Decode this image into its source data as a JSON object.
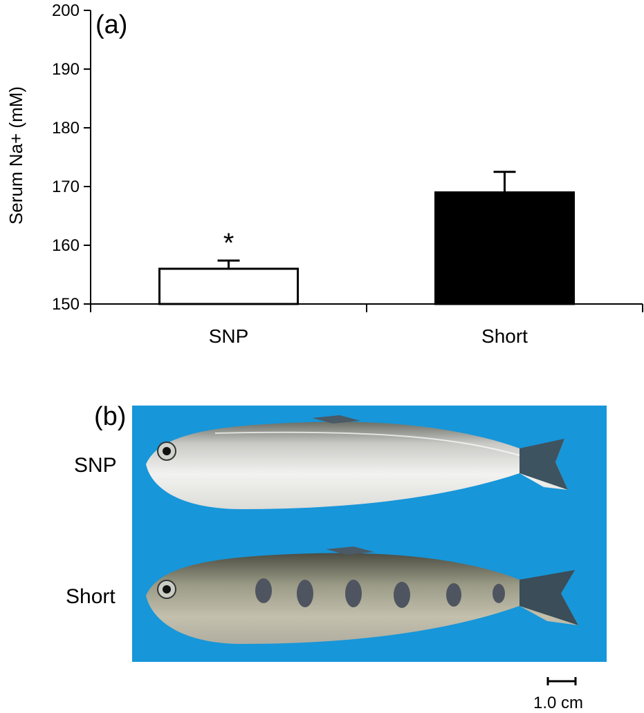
{
  "panel_a_letter": "(a)",
  "panel_b_letter": "(b)",
  "chart_data": {
    "type": "bar",
    "title": "",
    "xlabel": "",
    "ylabel": "Serum Na+ (mM)",
    "ylim": [
      150,
      200
    ],
    "yticks": [
      150,
      160,
      170,
      180,
      190,
      200
    ],
    "categories": [
      "SNP",
      "Short"
    ],
    "values": [
      156,
      169
    ],
    "errors": [
      1.4,
      3.5
    ],
    "bar_colors": [
      "#ffffff",
      "#000000"
    ],
    "significance": [
      "*",
      ""
    ],
    "grid": false,
    "legend": "none"
  },
  "photo": {
    "background_color": "#1796d9",
    "fish_labels": [
      "SNP",
      "Short"
    ]
  },
  "scale_bar": {
    "label": "1.0 cm"
  }
}
